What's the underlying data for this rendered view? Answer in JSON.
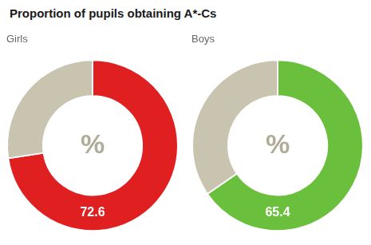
{
  "title": "Proportion of pupils obtaining A*-Cs",
  "chart_data": [
    {
      "type": "doughnut",
      "title": "Girls",
      "values": [
        72.6,
        27.4
      ],
      "colors": [
        "#e02020",
        "#c8c4b0"
      ],
      "value_labels": [
        "72.6",
        null
      ],
      "annotation": "%"
    },
    {
      "type": "doughnut",
      "title": "Boys",
      "values": [
        65.4,
        34.6
      ],
      "colors": [
        "#6abf3c",
        "#c8c4b0"
      ],
      "value_labels": [
        "65.4",
        null
      ],
      "annotation": "%"
    }
  ]
}
